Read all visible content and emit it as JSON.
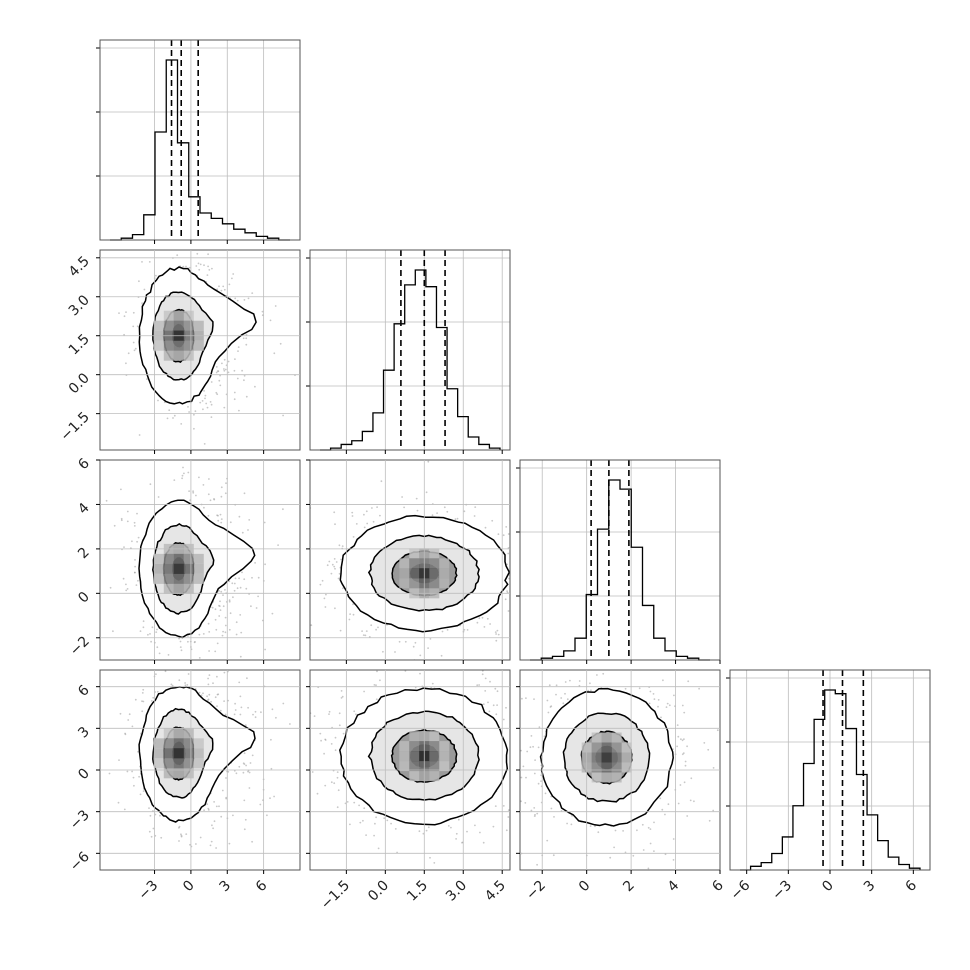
{
  "chart_data": {
    "type": "corner",
    "grid": true,
    "variables": [
      {
        "range": [
          -7.5,
          9.0
        ],
        "ticks": [
          "−3",
          "0",
          "3",
          "6"
        ],
        "tick_values": [
          -3,
          0,
          3,
          6
        ],
        "quantiles": [
          -1.6,
          -0.8,
          0.6
        ],
        "hist_values": [
          0,
          1,
          3,
          14,
          60,
          100,
          54,
          24,
          15,
          12,
          9,
          6,
          4,
          2,
          1,
          0
        ]
      },
      {
        "range": [
          -2.9,
          4.8
        ],
        "ticks": [
          "−1.5",
          "0.0",
          "1.5",
          "3.0",
          "4.5"
        ],
        "tick_values": [
          -1.5,
          0.0,
          1.5,
          3.0,
          4.5
        ],
        "quantiles": [
          0.6,
          1.5,
          2.3
        ],
        "hist_values": [
          0,
          1,
          3,
          5,
          10,
          20,
          43,
          68,
          89,
          97,
          88,
          66,
          33,
          18,
          7,
          3,
          1
        ]
      },
      {
        "range": [
          -3.0,
          6.0
        ],
        "ticks": [
          "−2",
          "0",
          "2",
          "4",
          "6"
        ],
        "tick_values": [
          -2,
          0,
          2,
          4,
          6
        ],
        "quantiles": [
          0.2,
          1.0,
          1.9
        ],
        "hist_values": [
          0,
          1,
          2,
          5,
          12,
          36,
          72,
          99,
          94,
          62,
          30,
          12,
          5,
          2,
          1,
          0
        ]
      },
      {
        "range": [
          -7.2,
          7.2
        ],
        "ticks": [
          "−6",
          "−3",
          "0",
          "3",
          "6"
        ],
        "tick_values": [
          -6,
          -3,
          0,
          3,
          6
        ],
        "quantiles": [
          -0.5,
          0.9,
          2.4
        ],
        "hist_values": [
          0,
          2,
          4,
          9,
          18,
          35,
          58,
          82,
          98,
          96,
          77,
          52,
          30,
          16,
          7,
          3,
          1
        ]
      }
    ],
    "pair_centers": {
      "1-0": [
        -1.0,
        1.5
      ],
      "2-0": [
        -1.0,
        1.1
      ],
      "2-1": [
        1.5,
        0.9
      ],
      "3-0": [
        -1.0,
        1.2
      ],
      "3-1": [
        1.5,
        1.0
      ],
      "3-2": [
        0.9,
        0.9
      ]
    }
  }
}
